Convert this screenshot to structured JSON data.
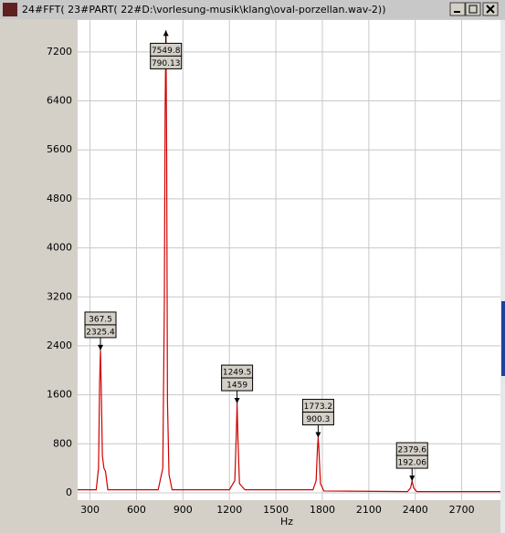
{
  "window": {
    "title": "24#FFT( 23#PART( 22#D:\\vorlesung-musik\\klang\\oval-porzellan.wav-2))"
  },
  "chart_data": {
    "type": "line",
    "xlabel": "Hz",
    "x": [
      220,
      340,
      355,
      362,
      367.5,
      372,
      380,
      390,
      400,
      415,
      740,
      770,
      780,
      785,
      790.13,
      795,
      800,
      810,
      830,
      1200,
      1235,
      1245,
      1249.5,
      1255,
      1265,
      1300,
      1740,
      1760,
      1768,
      1773.2,
      1778,
      1788,
      1810,
      2350,
      2370,
      2379.6,
      2390,
      2410,
      2950
    ],
    "series": [
      {
        "color": "#d00000",
        "values": [
          50,
          50,
          400,
          1800,
          2325.4,
          1800,
          600,
          400,
          350,
          50,
          50,
          400,
          3100,
          6200,
          7549.8,
          5500,
          1500,
          300,
          50,
          50,
          200,
          1000,
          1459,
          900,
          150,
          50,
          50,
          200,
          700,
          900.3,
          700,
          150,
          30,
          20,
          80,
          192.06,
          80,
          20,
          20
        ]
      }
    ],
    "xlim": [
      220,
      2950
    ],
    "ylim": [
      -120,
      7720
    ],
    "xticks": [
      300,
      600,
      900,
      1200,
      1500,
      1800,
      2100,
      2400,
      2700
    ],
    "yticks": [
      0,
      800,
      1600,
      2400,
      3200,
      4000,
      4800,
      5600,
      6400,
      7200
    ],
    "grid": true,
    "annotations": [
      {
        "x": 367.5,
        "y": 2325.4,
        "text": [
          "367.5",
          "2325.4"
        ]
      },
      {
        "x": 790.13,
        "y": 7549.8,
        "text": [
          "7549.8",
          "790.13"
        ]
      },
      {
        "x": 1249.5,
        "y": 1459,
        "text": [
          "1249.5",
          "1459"
        ]
      },
      {
        "x": 1773.2,
        "y": 900.3,
        "text": [
          "1773.2",
          "900.3"
        ]
      },
      {
        "x": 2379.6,
        "y": 192.06,
        "text": [
          "2379.6",
          "192.06"
        ]
      }
    ]
  }
}
